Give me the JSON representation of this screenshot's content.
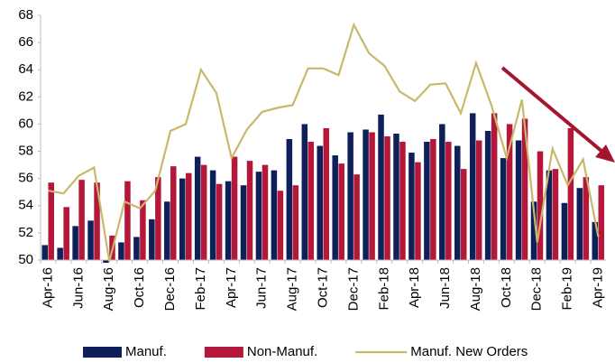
{
  "chart_data": {
    "type": "bar_line",
    "categories": [
      "Apr-16",
      null,
      "Jun-16",
      null,
      "Aug-16",
      null,
      "Oct-16",
      null,
      "Dec-16",
      null,
      "Feb-17",
      null,
      "Apr-17",
      null,
      "Jun-17",
      null,
      "Aug-17",
      null,
      "Oct-17",
      null,
      "Dec-17",
      null,
      "Feb-18",
      null,
      "Apr-18",
      null,
      "Jun-18",
      null,
      "Aug-18",
      null,
      "Oct-18",
      null,
      "Dec-18",
      null,
      "Feb-19",
      null,
      "Apr-19"
    ],
    "series": [
      {
        "name": "Manuf.",
        "type": "bar",
        "color": "#0f1f5a",
        "values": [
          51.1,
          50.9,
          52.5,
          52.9,
          49.8,
          51.3,
          51.7,
          53.0,
          54.3,
          56.0,
          57.6,
          56.6,
          55.8,
          55.5,
          56.5,
          56.6,
          58.9,
          60.0,
          58.4,
          57.7,
          59.4,
          59.6,
          60.7,
          59.3,
          57.9,
          58.7,
          60.0,
          58.4,
          60.8,
          59.5,
          57.5,
          58.8,
          54.3,
          56.6,
          54.2,
          55.3,
          52.8
        ]
      },
      {
        "name": "Non-Manuf.",
        "type": "bar",
        "color": "#b5173a",
        "values": [
          55.7,
          53.9,
          55.9,
          55.7,
          51.8,
          55.8,
          54.4,
          56.1,
          56.9,
          56.4,
          57.0,
          55.6,
          57.6,
          57.3,
          57.0,
          55.1,
          55.5,
          58.7,
          59.7,
          57.1,
          56.3,
          59.4,
          59.1,
          58.7,
          57.2,
          58.9,
          58.7,
          56.7,
          58.8,
          60.8,
          60.0,
          60.4,
          58.0,
          56.7,
          59.7,
          56.1,
          55.5
        ]
      },
      {
        "name": "Manuf. New Orders",
        "type": "line",
        "color": "#c8b96a",
        "values": [
          55.1,
          54.9,
          56.2,
          56.8,
          49.9,
          54.3,
          53.8,
          55.1,
          59.5,
          60.0,
          64.0,
          62.3,
          57.5,
          59.6,
          60.9,
          61.2,
          61.4,
          64.1,
          64.1,
          63.6,
          67.3,
          65.2,
          64.3,
          62.4,
          61.7,
          62.9,
          63.0,
          60.8,
          64.5,
          61.4,
          57.5,
          61.8,
          51.3,
          58.2,
          55.5,
          57.4,
          51.7
        ]
      }
    ],
    "ylim": [
      50,
      68
    ],
    "yticks": [
      50,
      52,
      54,
      56,
      58,
      60,
      62,
      64,
      66,
      68
    ],
    "grid": false,
    "legend": "bottom"
  }
}
